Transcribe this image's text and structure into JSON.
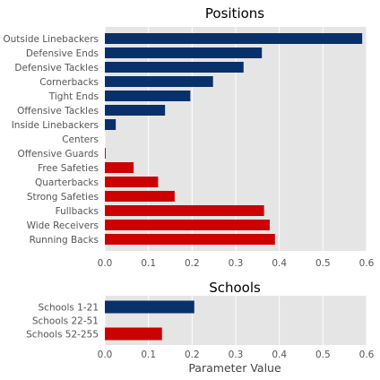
{
  "colors": {
    "navy": "#08306b",
    "red": "#cc0000",
    "panel_bg": "#e5e5e5",
    "grid": "#ffffff",
    "tick_text": "#555555",
    "title_text": "#000000"
  },
  "chart_data": [
    {
      "type": "bar",
      "orientation": "horizontal",
      "title": "Positions",
      "xlabel": "",
      "xlim": [
        0,
        0.6
      ],
      "xticks": [
        "0.0",
        "0.1",
        "0.2",
        "0.3",
        "0.4",
        "0.5",
        "0.6"
      ],
      "grid": true,
      "categories": [
        "Outside Linebackers",
        "Defensive Ends",
        "Defensive Tackles",
        "Cornerbacks",
        "Tight Ends",
        "Offensive Tackles",
        "Inside Linebackers",
        "Centers",
        "Offensive Guards",
        "Free Safeties",
        "Quarterbacks",
        "Strong Safeties",
        "Fullbacks",
        "Wide Receivers",
        "Running Backs"
      ],
      "values": [
        0.59,
        0.36,
        0.318,
        0.248,
        0.196,
        0.138,
        0.025,
        0.0,
        0.002,
        0.066,
        0.122,
        0.16,
        0.365,
        0.378,
        0.39
      ],
      "bar_colors": [
        "navy",
        "navy",
        "navy",
        "navy",
        "navy",
        "navy",
        "navy",
        "navy",
        "red",
        "red",
        "red",
        "red",
        "red",
        "red",
        "red"
      ]
    },
    {
      "type": "bar",
      "orientation": "horizontal",
      "title": "Schools",
      "xlabel": "Parameter Value",
      "xlim": [
        0,
        0.6
      ],
      "xticks": [
        "0.0",
        "0.1",
        "0.2",
        "0.3",
        "0.4",
        "0.5",
        "0.6"
      ],
      "grid": true,
      "categories": [
        "Schools 1-21",
        "Schools 22-51",
        "Schools 52-255"
      ],
      "values": [
        0.205,
        0.0,
        0.131
      ],
      "bar_colors": [
        "navy",
        "navy",
        "red"
      ]
    }
  ]
}
